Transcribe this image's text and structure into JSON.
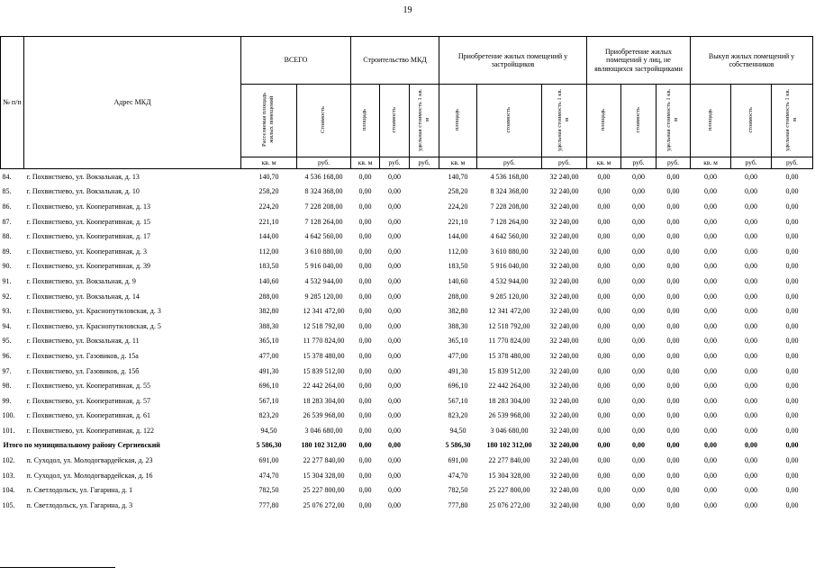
{
  "page": {
    "number": "19"
  },
  "ink_color": "#000000",
  "table": {
    "header": {
      "num": "№ п/п",
      "address": "Адрес МКД",
      "groups": [
        {
          "label": "ВСЕГО",
          "cols": [
            {
              "label": "Расселяемая площадь жилых помещений",
              "unit": "кв. м"
            },
            {
              "label": "Стоимость",
              "unit": "руб."
            }
          ]
        },
        {
          "label": "Строительство МКД",
          "cols": [
            {
              "label": "площадь",
              "unit": "кв. м"
            },
            {
              "label": "стоимость",
              "unit": "руб."
            },
            {
              "label": "удельная стоимость 1 кв. м",
              "unit": "руб."
            }
          ]
        },
        {
          "label": "Приобретение жилых помещений у застройщиков",
          "cols": [
            {
              "label": "площадь",
              "unit": "кв. м"
            },
            {
              "label": "стоимость",
              "unit": "руб."
            },
            {
              "label": "удельная стоимость 1 кв. м",
              "unit": "руб."
            }
          ]
        },
        {
          "label": "Приобретение жилых помещений у лиц, не являющихся застройщиками",
          "cols": [
            {
              "label": "площадь",
              "unit": "кв. м"
            },
            {
              "label": "стоимость",
              "unit": "руб."
            },
            {
              "label": "удельная стоимость 1 кв. м",
              "unit": "руб."
            }
          ]
        },
        {
          "label": "Выкуп жилых помещений у собственников",
          "cols": [
            {
              "label": "площадь",
              "unit": "кв. м"
            },
            {
              "label": "стоимость",
              "unit": "руб."
            },
            {
              "label": "удельная стоимость 1 кв. м",
              "unit": "руб."
            }
          ]
        }
      ]
    },
    "rows": [
      {
        "num": "84.",
        "address": "г. Похвистнево, ул. Вокзальная, д. 13",
        "v": [
          "140,70",
          "4 536 168,00",
          "0,00",
          "0,00",
          "",
          "140,70",
          "4 536 168,00",
          "32 240,00",
          "0,00",
          "0,00",
          "0,00",
          "0,00",
          "0,00",
          "0,00"
        ]
      },
      {
        "num": "85.",
        "address": "г. Похвистнево, ул. Вокзальная, д. 10",
        "v": [
          "258,20",
          "8 324 368,00",
          "0,00",
          "0,00",
          "",
          "258,20",
          "8 324 368,00",
          "32 240,00",
          "0,00",
          "0,00",
          "0,00",
          "0,00",
          "0,00",
          "0,00"
        ]
      },
      {
        "num": "86.",
        "address": "г. Похвистнево, ул. Кооперативная, д. 13",
        "v": [
          "224,20",
          "7 228 208,00",
          "0,00",
          "0,00",
          "",
          "224,20",
          "7 228 208,00",
          "32 240,00",
          "0,00",
          "0,00",
          "0,00",
          "0,00",
          "0,00",
          "0,00"
        ]
      },
      {
        "num": "87.",
        "address": "г. Похвистнево, ул. Кооперативная, д. 15",
        "v": [
          "221,10",
          "7 128 264,00",
          "0,00",
          "0,00",
          "",
          "221,10",
          "7 128 264,00",
          "32 240,00",
          "0,00",
          "0,00",
          "0,00",
          "0,00",
          "0,00",
          "0,00"
        ]
      },
      {
        "num": "88.",
        "address": "г. Похвистнево, ул. Кооперативная, д. 17",
        "v": [
          "144,00",
          "4 642 560,00",
          "0,00",
          "0,00",
          "",
          "144,00",
          "4 642 560,00",
          "32 240,00",
          "0,00",
          "0,00",
          "0,00",
          "0,00",
          "0,00",
          "0,00"
        ]
      },
      {
        "num": "89.",
        "address": "г. Похвистнево, ул. Кооперативная, д. 3",
        "v": [
          "112,00",
          "3 610 880,00",
          "0,00",
          "0,00",
          "",
          "112,00",
          "3 610 880,00",
          "32 240,00",
          "0,00",
          "0,00",
          "0,00",
          "0,00",
          "0,00",
          "0,00"
        ]
      },
      {
        "num": "90.",
        "address": "г. Похвистнево, ул. Кооперативная, д. 39",
        "v": [
          "183,50",
          "5 916 040,00",
          "0,00",
          "0,00",
          "",
          "183,50",
          "5 916 040,00",
          "32 240,00",
          "0,00",
          "0,00",
          "0,00",
          "0,00",
          "0,00",
          "0,00"
        ]
      },
      {
        "num": "91.",
        "address": "г. Похвистнево, ул. Вокзальная, д. 9",
        "v": [
          "140,60",
          "4 532 944,00",
          "0,00",
          "0,00",
          "",
          "140,60",
          "4 532 944,00",
          "32 240,00",
          "0,00",
          "0,00",
          "0,00",
          "0,00",
          "0,00",
          "0,00"
        ]
      },
      {
        "num": "92.",
        "address": "г. Похвистнево, ул. Вокзальная, д. 14",
        "v": [
          "288,00",
          "9 285 120,00",
          "0,00",
          "0,00",
          "",
          "288,00",
          "9 285 120,00",
          "32 240,00",
          "0,00",
          "0,00",
          "0,00",
          "0,00",
          "0,00",
          "0,00"
        ]
      },
      {
        "num": "93.",
        "address": "г. Похвистнево, ул. Краснопутиловская, д. 3",
        "v": [
          "382,80",
          "12 341 472,00",
          "0,00",
          "0,00",
          "",
          "382,80",
          "12 341 472,00",
          "32 240,00",
          "0,00",
          "0,00",
          "0,00",
          "0,00",
          "0,00",
          "0,00"
        ]
      },
      {
        "num": "94.",
        "address": "г. Похвистнево, ул. Краснопутиловская, д. 5",
        "v": [
          "388,30",
          "12 518 792,00",
          "0,00",
          "0,00",
          "",
          "388,30",
          "12 518 792,00",
          "32 240,00",
          "0,00",
          "0,00",
          "0,00",
          "0,00",
          "0,00",
          "0,00"
        ]
      },
      {
        "num": "95.",
        "address": "г. Похвистнево, ул. Вокзальная, д. 11",
        "v": [
          "365,10",
          "11 770 824,00",
          "0,00",
          "0,00",
          "",
          "365,10",
          "11 770 824,00",
          "32 240,00",
          "0,00",
          "0,00",
          "0,00",
          "0,00",
          "0,00",
          "0,00"
        ]
      },
      {
        "num": "96.",
        "address": "г. Похвистнево, ул. Газовиков, д. 15а",
        "v": [
          "477,00",
          "15 378 480,00",
          "0,00",
          "0,00",
          "",
          "477,00",
          "15 378 480,00",
          "32 240,00",
          "0,00",
          "0,00",
          "0,00",
          "0,00",
          "0,00",
          "0,00"
        ]
      },
      {
        "num": "97.",
        "address": "г. Похвистнево, ул. Газовиков, д. 15б",
        "v": [
          "491,30",
          "15 839 512,00",
          "0,00",
          "0,00",
          "",
          "491,30",
          "15 839 512,00",
          "32 240,00",
          "0,00",
          "0,00",
          "0,00",
          "0,00",
          "0,00",
          "0,00"
        ]
      },
      {
        "num": "98.",
        "address": "г. Похвистнево, ул. Кооперативная, д. 55",
        "v": [
          "696,10",
          "22 442 264,00",
          "0,00",
          "0,00",
          "",
          "696,10",
          "22 442 264,00",
          "32 240,00",
          "0,00",
          "0,00",
          "0,00",
          "0,00",
          "0,00",
          "0,00"
        ]
      },
      {
        "num": "99.",
        "address": "г. Похвистнево, ул. Кооперативная, д. 57",
        "v": [
          "567,10",
          "18 283 304,00",
          "0,00",
          "0,00",
          "",
          "567,10",
          "18 283 304,00",
          "32 240,00",
          "0,00",
          "0,00",
          "0,00",
          "0,00",
          "0,00",
          "0,00"
        ]
      },
      {
        "num": "100.",
        "address": "г. Похвистнево, ул. Кооперативная, д. 61",
        "v": [
          "823,20",
          "26 539 968,00",
          "0,00",
          "0,00",
          "",
          "823,20",
          "26 539 968,00",
          "32 240,00",
          "0,00",
          "0,00",
          "0,00",
          "0,00",
          "0,00",
          "0,00"
        ]
      },
      {
        "num": "101.",
        "address": "г. Похвистнево, ул. Кооперативная, д. 122",
        "v": [
          "94,50",
          "3 046 680,00",
          "0,00",
          "0,00",
          "",
          "94,50",
          "3 046 680,00",
          "32 240,00",
          "0,00",
          "0,00",
          "0,00",
          "0,00",
          "0,00",
          "0,00"
        ]
      },
      {
        "num": "",
        "address": "Итого по муниципальному району Сергиевский",
        "bold": true,
        "v": [
          "5 586,30",
          "180 102 312,00",
          "0,00",
          "0,00",
          "",
          "5 586,30",
          "180 102 312,00",
          "32 240,00",
          "0,00",
          "0,00",
          "0,00",
          "0,00",
          "0,00",
          "0,00"
        ]
      },
      {
        "num": "102.",
        "address": "п. Суходол, ул. Молодогвардейская, д. 23",
        "v": [
          "691,00",
          "22 277 840,00",
          "0,00",
          "0,00",
          "",
          "691,00",
          "22 277 840,00",
          "32 240,00",
          "0,00",
          "0,00",
          "0,00",
          "0,00",
          "0,00",
          "0,00"
        ]
      },
      {
        "num": "103.",
        "address": "п. Суходол, ул. Молодогвардейская, д. 16",
        "v": [
          "474,70",
          "15 304 328,00",
          "0,00",
          "0,00",
          "",
          "474,70",
          "15 304 328,00",
          "32 240,00",
          "0,00",
          "0,00",
          "0,00",
          "0,00",
          "0,00",
          "0,00"
        ]
      },
      {
        "num": "104.",
        "address": "п. Светлодольск, ул. Гагарина, д. 1",
        "v": [
          "782,50",
          "25 227 800,00",
          "0,00",
          "0,00",
          "",
          "782,50",
          "25 227 800,00",
          "32 240,00",
          "0,00",
          "0,00",
          "0,00",
          "0,00",
          "0,00",
          "0,00"
        ]
      },
      {
        "num": "105.",
        "address": "п. Светлодольск, ул. Гагарина, д. 3",
        "v": [
          "777,80",
          "25 076 272,00",
          "0,00",
          "0,00",
          "",
          "777,80",
          "25 076 272,00",
          "32 240,00",
          "0,00",
          "0,00",
          "0,00",
          "0,00",
          "0,00",
          "0,00"
        ]
      }
    ]
  }
}
